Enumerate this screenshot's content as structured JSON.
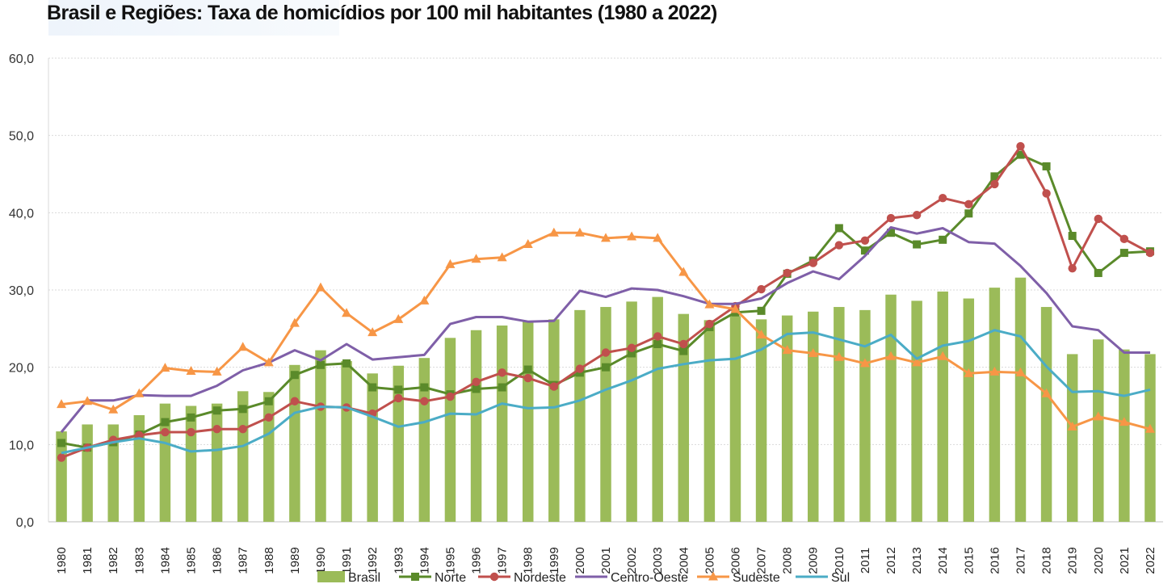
{
  "chart_data": {
    "type": "bar+line",
    "title": "Brasil e Regiões: Taxa de homicídios por 100 mil habitantes (1980 a 2022)",
    "categories": [
      "1980",
      "1981",
      "1982",
      "1983",
      "1984",
      "1985",
      "1986",
      "1987",
      "1988",
      "1989",
      "1990",
      "1991",
      "1992",
      "1993",
      "1994",
      "1995",
      "1996",
      "1997",
      "1998",
      "1999",
      "2000",
      "2001",
      "2002",
      "2003",
      "2004",
      "2005",
      "2006",
      "2007",
      "2008",
      "2009",
      "2010",
      "2011",
      "2012",
      "2013",
      "2014",
      "2015",
      "2016",
      "2017",
      "2018",
      "2019",
      "2020",
      "2021",
      "2022"
    ],
    "ylim": [
      0,
      60
    ],
    "yticks": [
      "0,0",
      "10,0",
      "20,0",
      "30,0",
      "40,0",
      "50,0",
      "60,0"
    ],
    "ytick_values": [
      0,
      10,
      20,
      30,
      40,
      50,
      60
    ],
    "grid": true,
    "legend_position": "bottom",
    "series": [
      {
        "name": "Brasil",
        "kind": "bar",
        "color": "#9bbb59",
        "values": [
          11.7,
          12.6,
          12.6,
          13.8,
          15.3,
          15.0,
          15.3,
          16.9,
          16.8,
          20.3,
          22.2,
          20.8,
          19.2,
          20.2,
          21.2,
          23.8,
          24.8,
          25.4,
          25.9,
          26.2,
          27.4,
          27.8,
          28.5,
          29.1,
          26.9,
          26.1,
          26.6,
          26.2,
          26.7,
          27.2,
          27.8,
          27.4,
          29.4,
          28.6,
          29.8,
          28.9,
          30.3,
          31.6,
          27.8,
          21.7,
          23.6,
          22.3,
          21.7
        ]
      },
      {
        "name": "Norte",
        "kind": "line",
        "marker": "square",
        "color": "#5a8a2a",
        "values": [
          10.2,
          9.6,
          10.3,
          11.3,
          12.9,
          13.5,
          14.4,
          14.6,
          15.6,
          19.0,
          20.3,
          20.5,
          17.4,
          17.1,
          17.4,
          16.5,
          17.2,
          17.4,
          19.7,
          17.7,
          19.3,
          20.0,
          21.8,
          23.0,
          22.1,
          25.2,
          27.1,
          27.3,
          32.1,
          33.8,
          38.0,
          35.1,
          37.4,
          35.9,
          36.5,
          39.9,
          44.7,
          47.5,
          46.0,
          37.0,
          32.2,
          34.8,
          35.0
        ]
      },
      {
        "name": "Nordeste",
        "kind": "line",
        "marker": "circle",
        "color": "#c0504d",
        "values": [
          8.3,
          9.6,
          10.6,
          11.2,
          11.6,
          11.6,
          12.0,
          12.0,
          13.5,
          15.6,
          14.9,
          14.8,
          14.0,
          16.0,
          15.6,
          16.2,
          18.1,
          19.3,
          18.6,
          17.5,
          19.8,
          21.9,
          22.5,
          24.0,
          23.0,
          25.6,
          27.9,
          30.1,
          32.2,
          33.5,
          35.8,
          36.4,
          39.3,
          39.7,
          41.9,
          41.1,
          43.7,
          48.6,
          42.5,
          32.8,
          39.2,
          36.6,
          34.8
        ]
      },
      {
        "name": "Centro-Oeste",
        "kind": "line",
        "marker": "none",
        "color": "#7f5fa8",
        "values": [
          11.6,
          15.7,
          15.7,
          16.4,
          16.3,
          16.3,
          17.6,
          19.6,
          20.6,
          22.2,
          20.9,
          23.0,
          21.0,
          21.3,
          21.6,
          25.6,
          26.5,
          26.5,
          25.9,
          26.0,
          29.9,
          29.1,
          30.2,
          30.0,
          29.2,
          28.2,
          28.2,
          28.9,
          30.9,
          32.4,
          31.4,
          34.4,
          38.1,
          37.3,
          38.0,
          36.2,
          36.0,
          33.1,
          29.6,
          25.3,
          24.8,
          21.9,
          21.9
        ]
      },
      {
        "name": "Sudeste",
        "kind": "line",
        "marker": "triangle",
        "color": "#f79646",
        "values": [
          15.2,
          15.6,
          14.5,
          16.6,
          19.9,
          19.5,
          19.4,
          22.6,
          20.6,
          25.7,
          30.3,
          27.0,
          24.5,
          26.2,
          28.6,
          33.3,
          34.0,
          34.2,
          35.9,
          37.4,
          37.4,
          36.7,
          36.9,
          36.7,
          32.3,
          28.1,
          27.5,
          24.2,
          22.2,
          21.8,
          21.3,
          20.5,
          21.4,
          20.6,
          21.4,
          19.2,
          19.4,
          19.3,
          16.6,
          12.3,
          13.6,
          12.9,
          12.0
        ]
      },
      {
        "name": "Sul",
        "kind": "line",
        "marker": "none",
        "color": "#4bacc6",
        "values": [
          8.9,
          9.6,
          10.3,
          10.8,
          10.2,
          9.1,
          9.3,
          9.8,
          11.4,
          14.1,
          14.9,
          14.8,
          13.6,
          12.3,
          12.9,
          14.0,
          13.9,
          15.3,
          14.7,
          14.8,
          15.7,
          17.1,
          18.3,
          19.8,
          20.4,
          20.9,
          21.1,
          22.3,
          24.3,
          24.5,
          23.6,
          22.7,
          24.2,
          21.1,
          22.8,
          23.4,
          24.8,
          24.0,
          20.1,
          16.8,
          16.9,
          16.3,
          17.1
        ]
      }
    ]
  }
}
